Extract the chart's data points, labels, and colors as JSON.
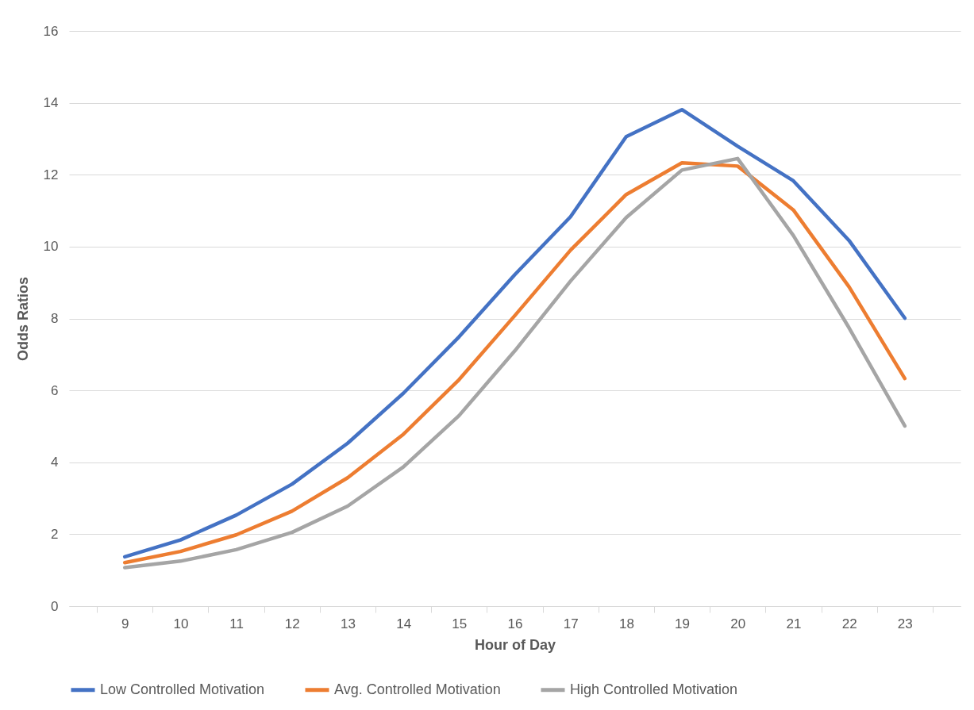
{
  "chart_data": {
    "type": "line",
    "xlabel": "Hour of Day",
    "ylabel": "Odds Ratios",
    "categories": [
      "9",
      "10",
      "11",
      "12",
      "13",
      "14",
      "15",
      "16",
      "17",
      "18",
      "19",
      "20",
      "21",
      "22",
      "23"
    ],
    "series": [
      {
        "name": "Low Controlled Motivation",
        "color": "#4472c4",
        "values": [
          1.37,
          1.84,
          2.53,
          3.39,
          4.53,
          5.92,
          7.49,
          9.22,
          10.83,
          13.06,
          13.81,
          12.79,
          11.83,
          10.17,
          8.01
        ]
      },
      {
        "name": "Avg. Controlled Motivation",
        "color": "#ed7d31",
        "values": [
          1.21,
          1.52,
          1.98,
          2.64,
          3.57,
          4.78,
          6.3,
          8.08,
          9.9,
          11.45,
          12.33,
          12.24,
          11.02,
          8.88,
          6.33
        ]
      },
      {
        "name": "High Controlled Motivation",
        "color": "#a5a5a5",
        "values": [
          1.07,
          1.25,
          1.57,
          2.05,
          2.78,
          3.87,
          5.3,
          7.1,
          9.04,
          10.81,
          12.13,
          12.45,
          10.31,
          7.74,
          5.01
        ]
      }
    ],
    "ylim": [
      0,
      16
    ],
    "yticks": [
      0,
      2,
      4,
      6,
      8,
      10,
      12,
      14,
      16
    ],
    "grid": "y",
    "legend": "bottom",
    "line_style": "solid",
    "marker": "none"
  }
}
